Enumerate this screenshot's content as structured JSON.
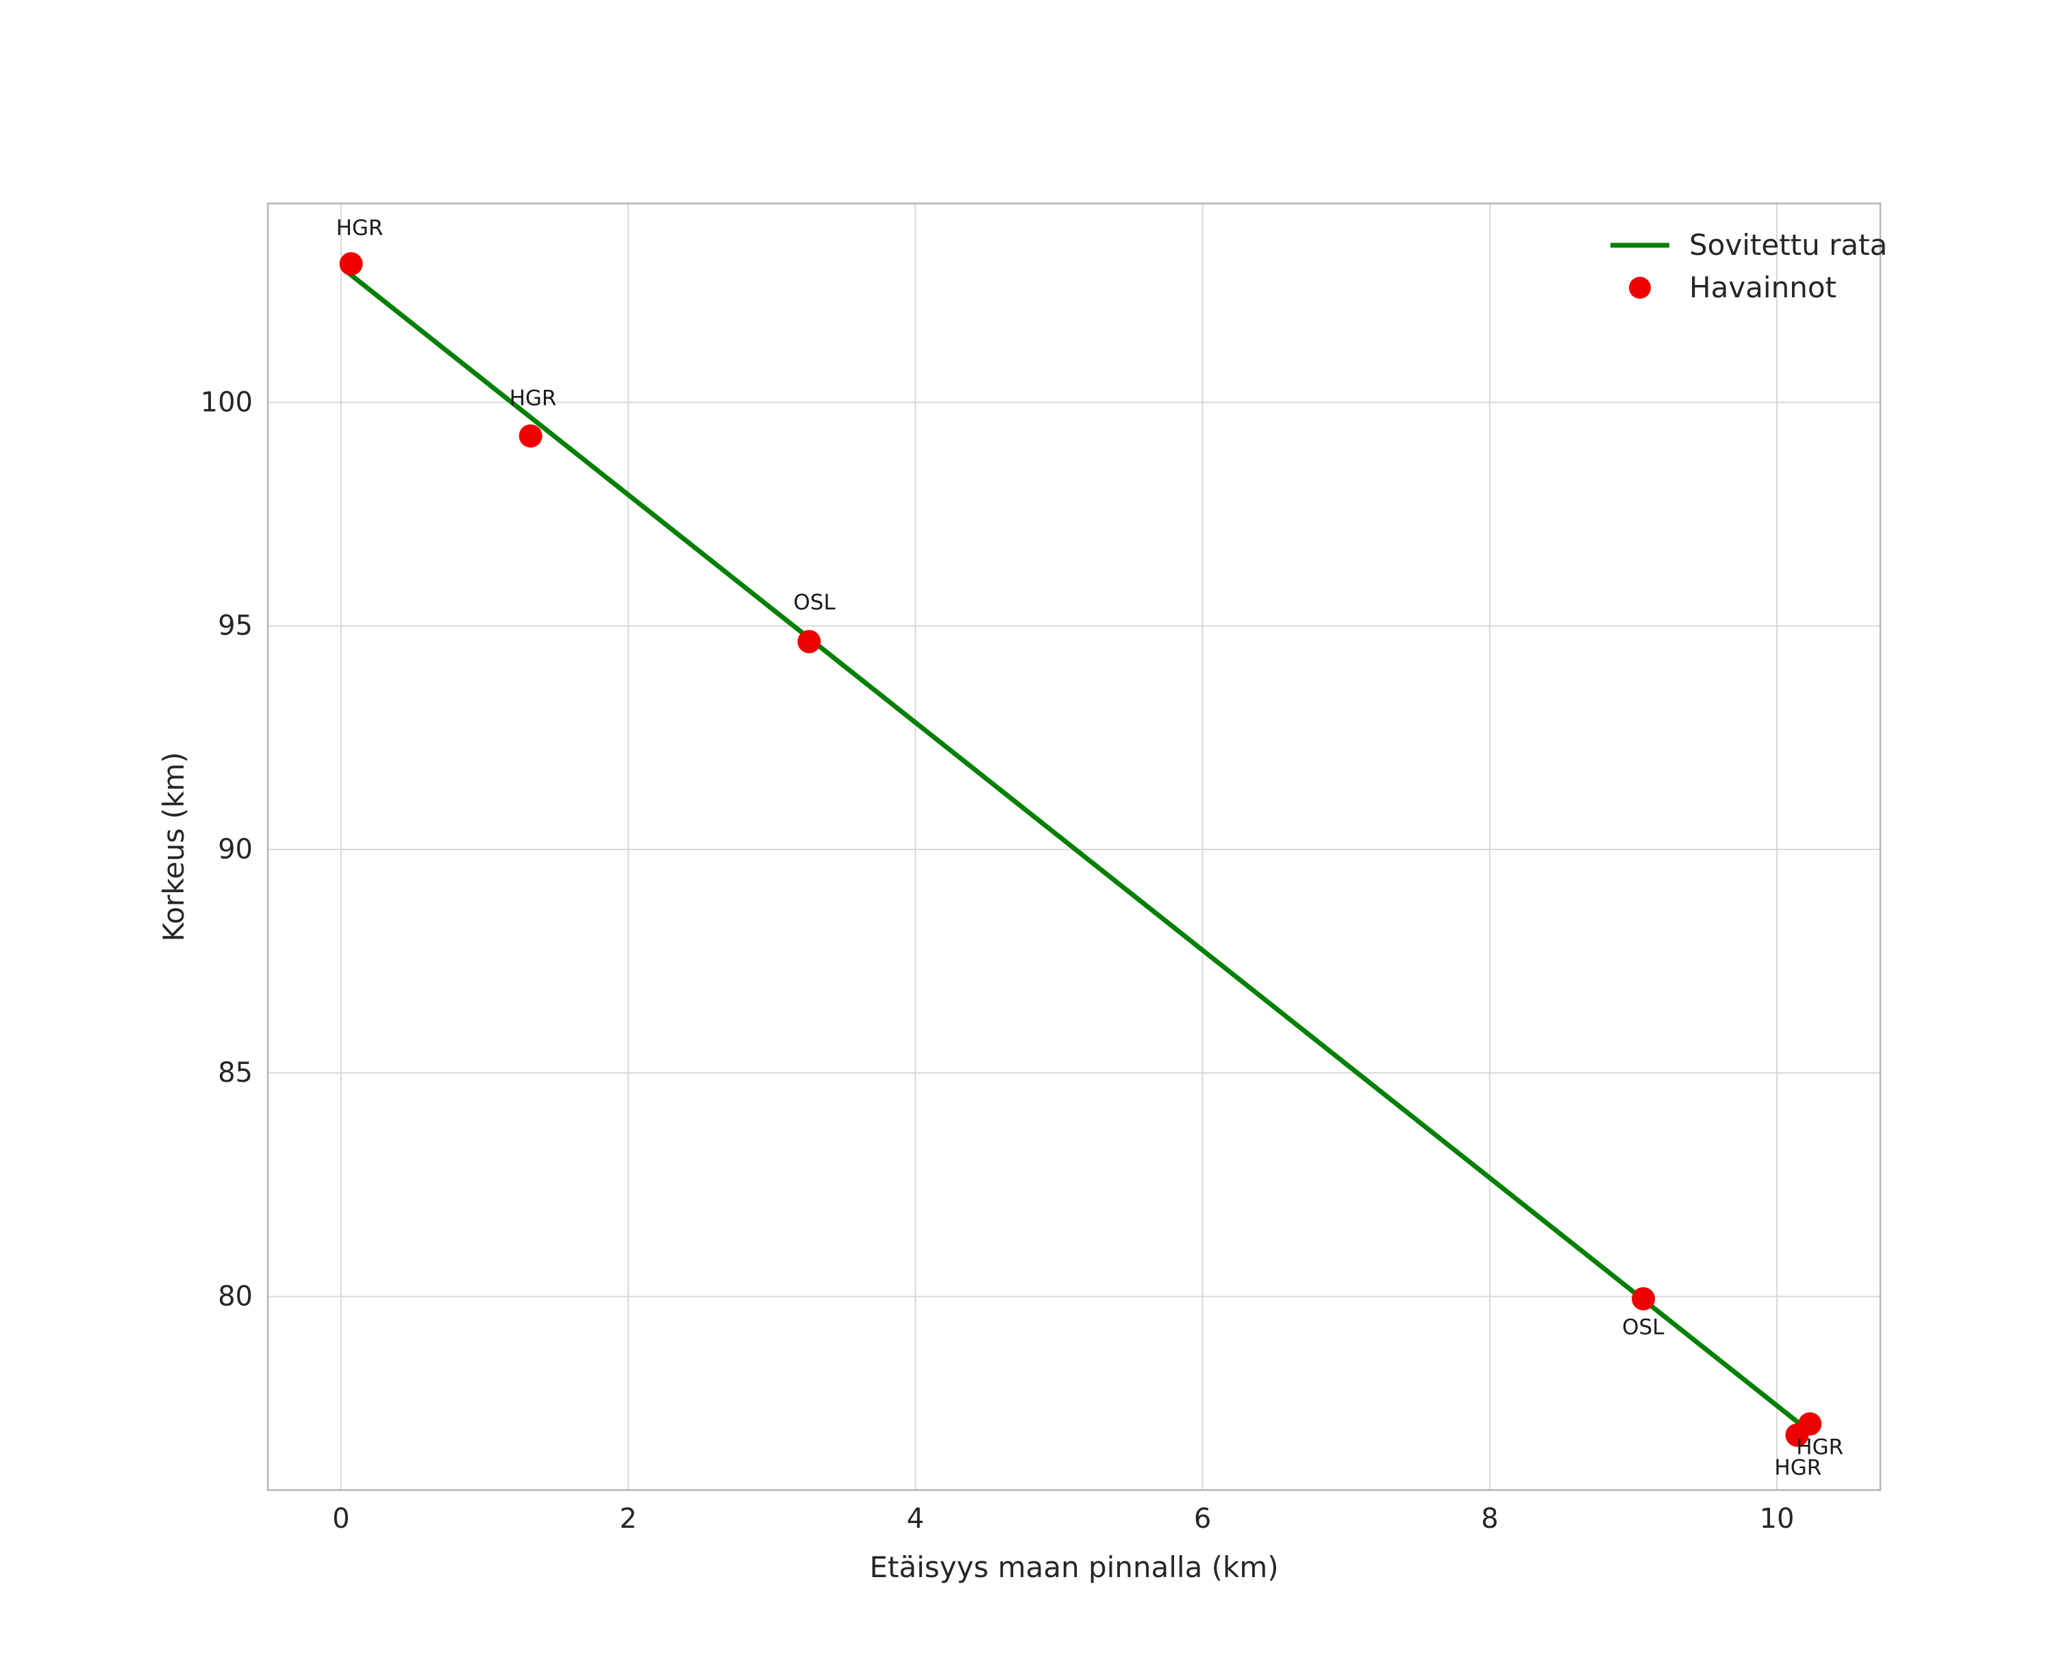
{
  "chart_data": {
    "type": "scatter",
    "title": "",
    "xlabel": "Etäisyys maan pinnalla (km)",
    "ylabel": "Korkeus (km)",
    "xlim": [
      -0.51,
      10.72
    ],
    "ylim": [
      75.67,
      104.45
    ],
    "xticks": [
      0,
      2,
      4,
      6,
      8,
      10
    ],
    "yticks": [
      80,
      85,
      90,
      95,
      100
    ],
    "grid": true,
    "grid_color": "#d8d8d8",
    "border_color": "#b5b5b5",
    "legend": {
      "position": "upper right",
      "entries": [
        {
          "label": "Sovitettu rata",
          "type": "line",
          "color": "#008000"
        },
        {
          "label": "Havainnot",
          "type": "point",
          "color": "#ee0000"
        }
      ]
    },
    "series": [
      {
        "name": "Sovitettu rata",
        "type": "line",
        "color": "#008000",
        "points": [
          [
            0.05,
            102.9
          ],
          [
            10.2,
            77.05
          ]
        ]
      },
      {
        "name": "Havainnot",
        "type": "scatter",
        "color": "#ee0000",
        "points": [
          {
            "x": 0.07,
            "y": 103.1,
            "label": "HGR",
            "label_dx": -22,
            "label_dy": -42
          },
          {
            "x": 1.32,
            "y": 99.25,
            "label": "HGR",
            "label_dx": -31,
            "label_dy": -45
          },
          {
            "x": 3.26,
            "y": 94.65,
            "label": "OSL",
            "label_dx": -23,
            "label_dy": -47
          },
          {
            "x": 9.07,
            "y": 79.95,
            "label": "OSL",
            "label_dx": -31,
            "label_dy": 52
          },
          {
            "x": 10.14,
            "y": 76.9,
            "label": "HGR",
            "label_dx": -33,
            "label_dy": 58
          },
          {
            "x": 10.23,
            "y": 77.15,
            "label": "HGR",
            "label_dx": -20,
            "label_dy": 44
          }
        ]
      }
    ]
  }
}
